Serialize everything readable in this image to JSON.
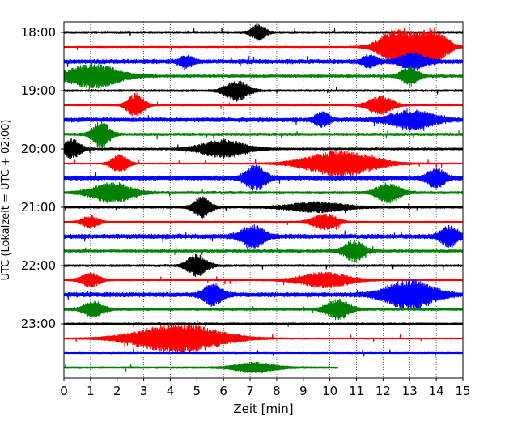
{
  "chart_data": {
    "type": "line",
    "title": "",
    "xlabel": "Zeit  [min]",
    "ylabel": "UTC (Lokalzeit = UTC + 02:00)",
    "xlim": [
      0,
      15
    ],
    "x_ticks": [
      0,
      1,
      2,
      3,
      4,
      5,
      6,
      7,
      8,
      9,
      10,
      11,
      12,
      13,
      14,
      15
    ],
    "x_tick_labels": [
      "0",
      "1",
      "2",
      "3",
      "4",
      "5",
      "6",
      "7",
      "8",
      "9",
      "10",
      "11",
      "12",
      "13",
      "14",
      "15"
    ],
    "y_tick_labels": [
      "18:00",
      "19:00",
      "20:00",
      "21:00",
      "22:00",
      "23:00"
    ],
    "y_tick_rows": [
      0,
      4,
      8,
      12,
      16,
      20
    ],
    "grid": {
      "x": true,
      "y": false,
      "style": "dotted"
    },
    "colors": [
      "#000000",
      "#ff0000",
      "#0000ff",
      "#008000"
    ],
    "traces": [
      {
        "start": "18:00",
        "color": "#000000",
        "noise": 0.12,
        "end_min": 15,
        "events": [
          {
            "t": 7.3,
            "amp": 0.8,
            "dur": 0.5
          }
        ]
      },
      {
        "start": "18:15",
        "color": "#ff0000",
        "noise": 0.08,
        "end_min": 15,
        "events": [
          {
            "t": 12.6,
            "amp": 1.9,
            "dur": 1.3
          },
          {
            "t": 13.9,
            "amp": 1.7,
            "dur": 1.0
          }
        ]
      },
      {
        "start": "18:30",
        "color": "#0000ff",
        "noise": 0.25,
        "end_min": 15,
        "events": [
          {
            "t": 4.6,
            "amp": 0.5,
            "dur": 0.5
          },
          {
            "t": 11.5,
            "amp": 0.6,
            "dur": 0.5
          },
          {
            "t": 13.1,
            "amp": 0.8,
            "dur": 0.9
          }
        ]
      },
      {
        "start": "18:45",
        "color": "#008000",
        "noise": 0.15,
        "end_min": 15,
        "events": [
          {
            "t": 1.1,
            "amp": 1.2,
            "dur": 1.8
          },
          {
            "t": 13.0,
            "amp": 0.9,
            "dur": 0.6
          }
        ]
      },
      {
        "start": "19:00",
        "color": "#000000",
        "noise": 0.12,
        "end_min": 15,
        "events": [
          {
            "t": 6.5,
            "amp": 1.0,
            "dur": 0.8
          }
        ]
      },
      {
        "start": "19:15",
        "color": "#ff0000",
        "noise": 0.08,
        "end_min": 15,
        "events": [
          {
            "t": 2.7,
            "amp": 1.2,
            "dur": 0.6
          },
          {
            "t": 11.9,
            "amp": 0.9,
            "dur": 0.9
          }
        ]
      },
      {
        "start": "19:30",
        "color": "#0000ff",
        "noise": 0.25,
        "end_min": 15,
        "events": [
          {
            "t": 9.7,
            "amp": 0.7,
            "dur": 0.5
          },
          {
            "t": 13.1,
            "amp": 0.9,
            "dur": 1.5
          }
        ]
      },
      {
        "start": "19:45",
        "color": "#008000",
        "noise": 0.15,
        "end_min": 15,
        "events": [
          {
            "t": 1.4,
            "amp": 1.3,
            "dur": 0.6
          }
        ]
      },
      {
        "start": "20:00",
        "color": "#000000",
        "noise": 0.12,
        "end_min": 15,
        "events": [
          {
            "t": 0.3,
            "amp": 1.0,
            "dur": 0.6
          },
          {
            "t": 6.0,
            "amp": 0.9,
            "dur": 1.6
          }
        ]
      },
      {
        "start": "20:15",
        "color": "#ff0000",
        "noise": 0.08,
        "end_min": 15,
        "events": [
          {
            "t": 2.1,
            "amp": 0.9,
            "dur": 0.6
          },
          {
            "t": 10.4,
            "amp": 1.3,
            "dur": 2.4
          }
        ]
      },
      {
        "start": "20:30",
        "color": "#0000ff",
        "noise": 0.25,
        "end_min": 15,
        "events": [
          {
            "t": 7.2,
            "amp": 1.2,
            "dur": 0.7
          },
          {
            "t": 14.0,
            "amp": 1.0,
            "dur": 0.6
          }
        ]
      },
      {
        "start": "20:45",
        "color": "#008000",
        "noise": 0.15,
        "end_min": 15,
        "events": [
          {
            "t": 1.8,
            "amp": 1.0,
            "dur": 1.4
          },
          {
            "t": 12.2,
            "amp": 1.0,
            "dur": 0.8
          }
        ]
      },
      {
        "start": "21:00",
        "color": "#000000",
        "noise": 0.12,
        "end_min": 15,
        "events": [
          {
            "t": 5.2,
            "amp": 1.1,
            "dur": 0.6
          },
          {
            "t": 9.5,
            "amp": 0.5,
            "dur": 2.0
          }
        ]
      },
      {
        "start": "21:15",
        "color": "#ff0000",
        "noise": 0.08,
        "end_min": 15,
        "events": [
          {
            "t": 1.0,
            "amp": 0.6,
            "dur": 0.6
          },
          {
            "t": 9.8,
            "amp": 0.8,
            "dur": 0.9
          }
        ]
      },
      {
        "start": "21:30",
        "color": "#0000ff",
        "noise": 0.25,
        "end_min": 15,
        "events": [
          {
            "t": 7.1,
            "amp": 1.1,
            "dur": 0.8
          },
          {
            "t": 14.5,
            "amp": 1.0,
            "dur": 0.6
          }
        ]
      },
      {
        "start": "21:45",
        "color": "#008000",
        "noise": 0.15,
        "end_min": 15,
        "events": [
          {
            "t": 10.9,
            "amp": 1.1,
            "dur": 0.7
          }
        ]
      },
      {
        "start": "22:00",
        "color": "#000000",
        "noise": 0.12,
        "end_min": 15,
        "events": [
          {
            "t": 5.0,
            "amp": 1.1,
            "dur": 0.7
          }
        ]
      },
      {
        "start": "22:15",
        "color": "#ff0000",
        "noise": 0.08,
        "end_min": 15,
        "events": [
          {
            "t": 1.0,
            "amp": 0.7,
            "dur": 0.7
          },
          {
            "t": 9.8,
            "amp": 0.8,
            "dur": 1.8
          }
        ]
      },
      {
        "start": "22:30",
        "color": "#0000ff",
        "noise": 0.25,
        "end_min": 15,
        "events": [
          {
            "t": 5.6,
            "amp": 1.0,
            "dur": 0.7
          },
          {
            "t": 13.0,
            "amp": 1.4,
            "dur": 1.7
          }
        ]
      },
      {
        "start": "22:45",
        "color": "#008000",
        "noise": 0.15,
        "end_min": 15,
        "events": [
          {
            "t": 1.1,
            "amp": 0.8,
            "dur": 0.7
          },
          {
            "t": 10.3,
            "amp": 1.0,
            "dur": 0.8
          }
        ]
      },
      {
        "start": "23:00",
        "color": "#000000",
        "noise": 0.12,
        "end_min": 15,
        "events": []
      },
      {
        "start": "23:15",
        "color": "#ff0000",
        "noise": 0.08,
        "end_min": 15,
        "events": [
          {
            "t": 4.3,
            "amp": 1.5,
            "dur": 3.0
          }
        ]
      },
      {
        "start": "23:30",
        "color": "#0000ff",
        "noise": 0.08,
        "end_min": 15,
        "events": []
      },
      {
        "start": "23:45",
        "color": "#008000",
        "noise": 0.1,
        "end_min": 10.3,
        "events": [
          {
            "t": 7.2,
            "amp": 0.5,
            "dur": 1.4
          }
        ]
      }
    ]
  }
}
